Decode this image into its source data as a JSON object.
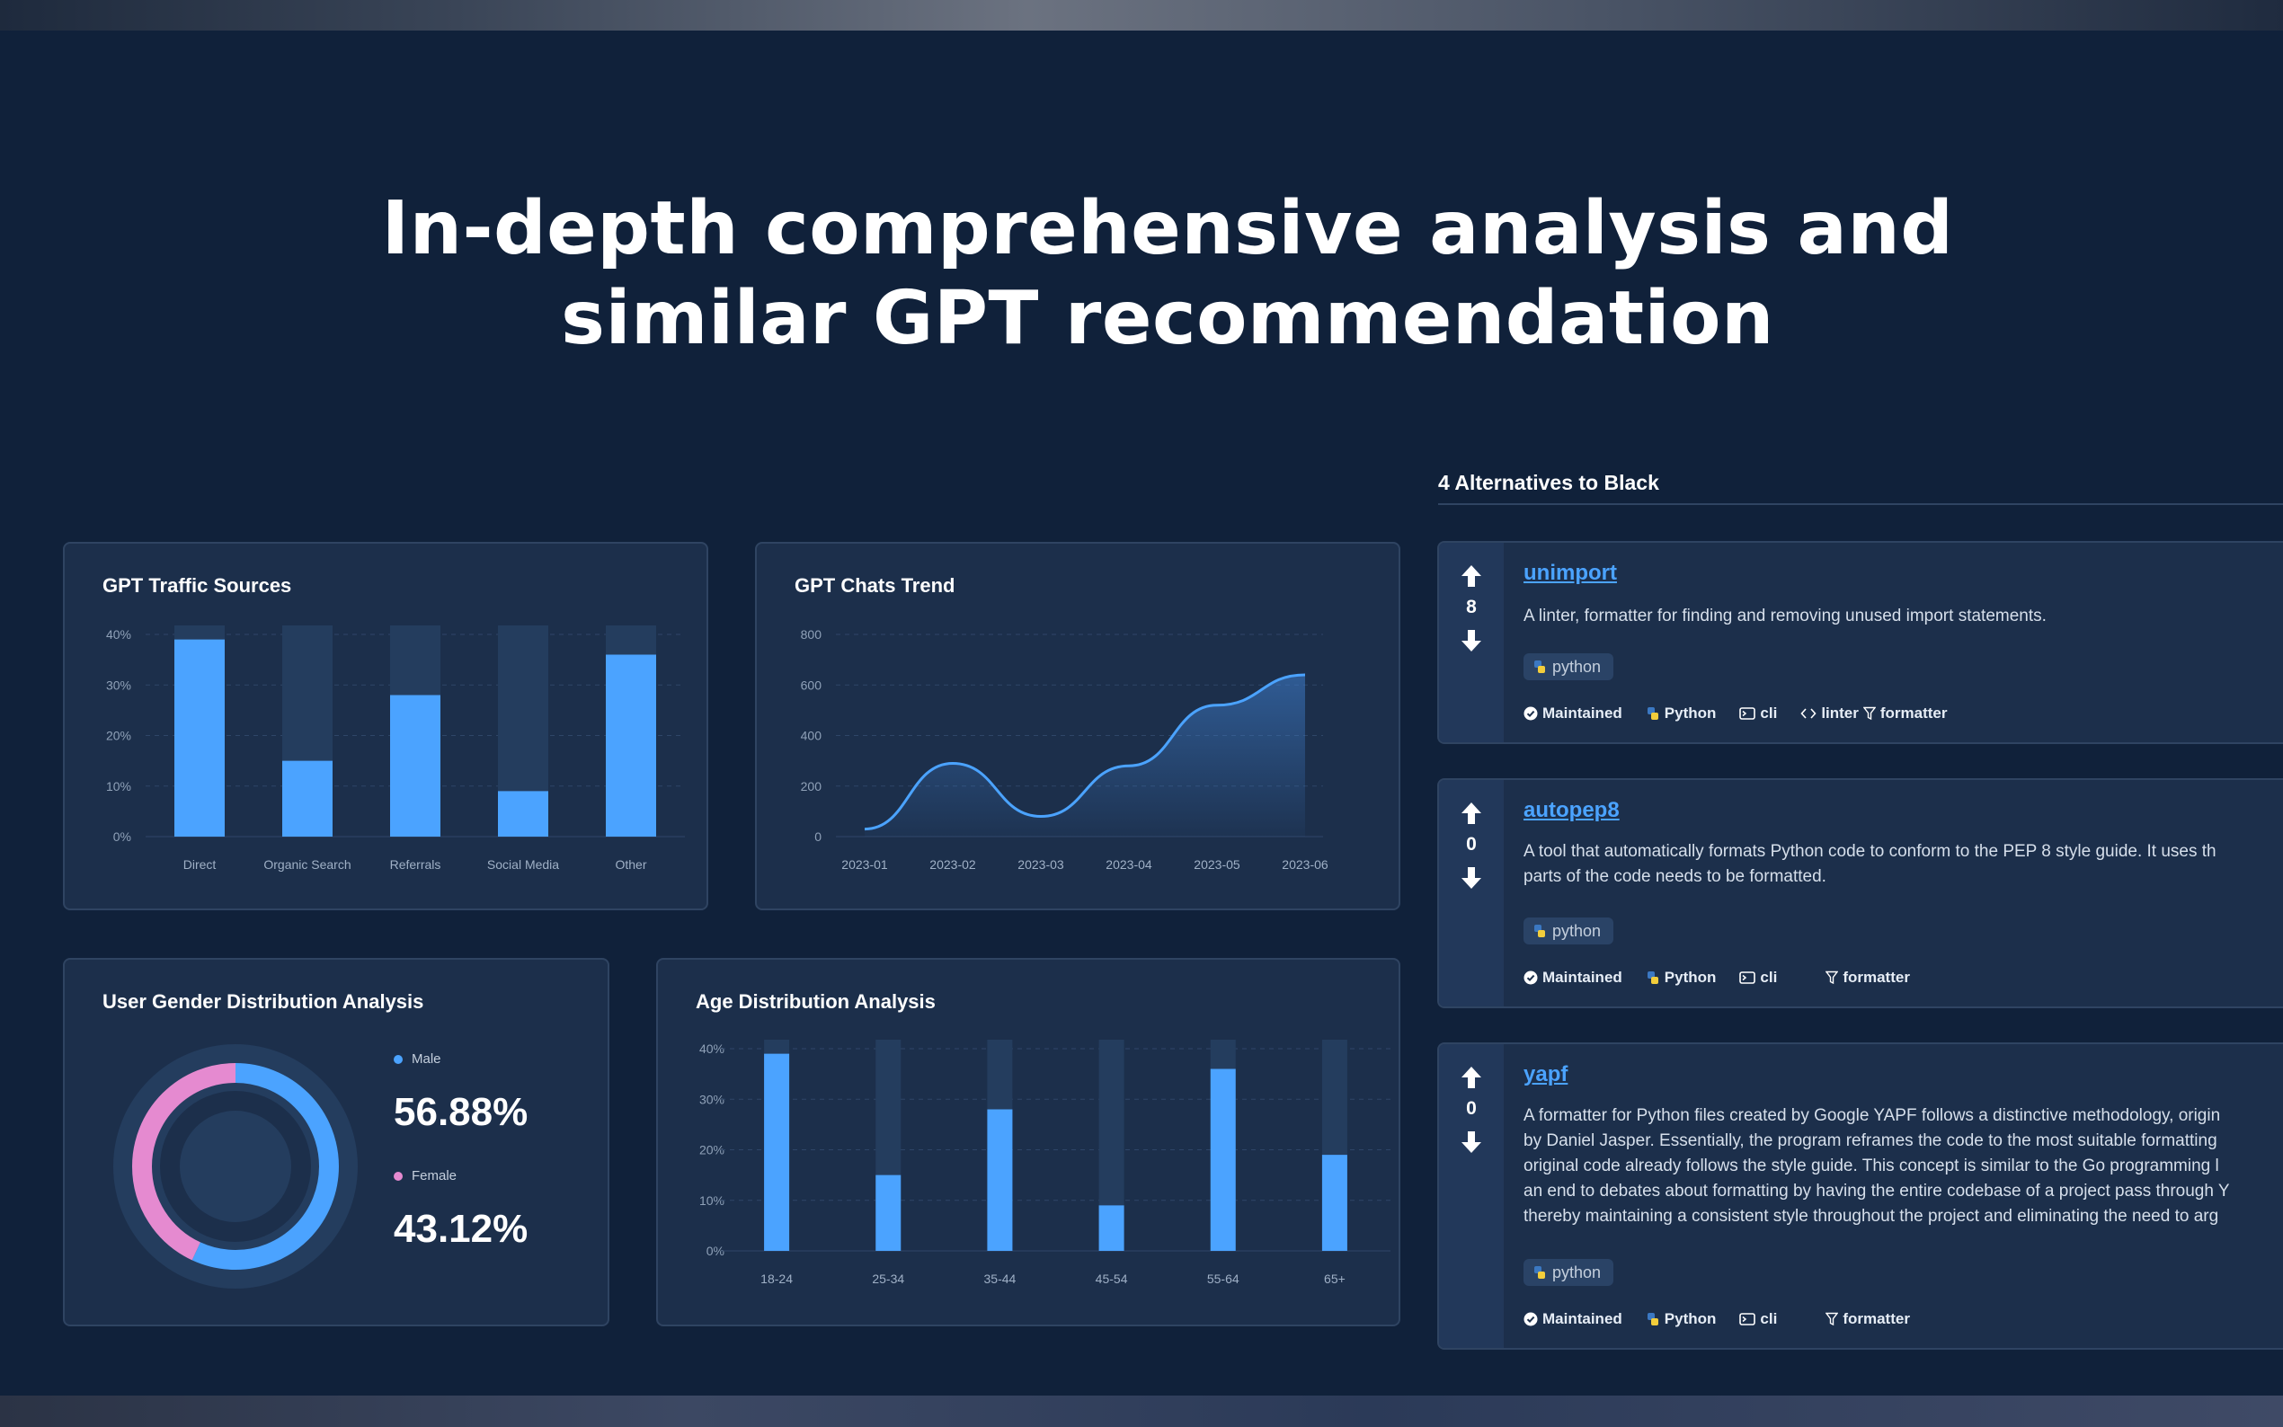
{
  "hero": {
    "line1": "In-depth comprehensive analysis and",
    "line2": "similar GPT recommendation"
  },
  "colors": {
    "background": "#10213a",
    "card": "#1c2f4b",
    "accent_blue": "#4ba3ff",
    "bar_track": "#243d5e",
    "pink": "#e58ad0"
  },
  "traffic": {
    "title": "GPT Traffic Sources",
    "chart_data": {
      "type": "bar",
      "categories": [
        "Direct",
        "Organic Search",
        "Referrals",
        "Social Media",
        "Other"
      ],
      "values": [
        39,
        15,
        28,
        9,
        36
      ],
      "yticks": [
        "40%",
        "30%",
        "20%",
        "10%",
        "0%"
      ],
      "ylim": [
        0,
        40
      ]
    }
  },
  "chats": {
    "title": "GPT Chats Trend",
    "chart_data": {
      "type": "area",
      "x": [
        "2023-01",
        "2023-02",
        "2023-03",
        "2023-04",
        "2023-05",
        "2023-06"
      ],
      "values": [
        30,
        290,
        80,
        280,
        520,
        640
      ],
      "yticks": [
        "800",
        "600",
        "400",
        "200",
        "0"
      ],
      "ylim": [
        0,
        800
      ]
    }
  },
  "gender": {
    "title": "User Gender Distribution Analysis",
    "male_label": "Male",
    "male_value": "56.88%",
    "female_label": "Female",
    "female_value": "43.12%",
    "chart_data": {
      "type": "pie",
      "labels": [
        "Male",
        "Female"
      ],
      "values": [
        56.88,
        43.12
      ]
    }
  },
  "age": {
    "title": "Age Distribution Analysis",
    "chart_data": {
      "type": "bar",
      "categories": [
        "18-24",
        "25-34",
        "35-44",
        "45-54",
        "55-64",
        "65+"
      ],
      "values": [
        39,
        15,
        28,
        9,
        36,
        19
      ],
      "yticks": [
        "40%",
        "30%",
        "20%",
        "10%",
        "0%"
      ],
      "ylim": [
        0,
        40
      ]
    }
  },
  "alternatives": {
    "heading": "4 Alternatives to Black",
    "items": [
      {
        "name": "unimport",
        "votes": "8",
        "desc1": "A linter, formatter for finding and removing unused import statements.",
        "desc2": "",
        "desc3": "",
        "desc4": "",
        "desc5": "",
        "tag": "python",
        "maintained": "Maintained",
        "language": "Python",
        "cli": "cli",
        "tags_text": "linter",
        "formatter": "formatter"
      },
      {
        "name": "autopep8",
        "votes": "0",
        "desc1": "A tool that automatically formats Python code to conform to the PEP 8 style guide. It uses th",
        "desc2": "parts of the code needs to be formatted.",
        "desc3": "",
        "desc4": "",
        "desc5": "",
        "tag": "python",
        "maintained": "Maintained",
        "language": "Python",
        "cli": "cli",
        "tags_text": "",
        "formatter": "formatter"
      },
      {
        "name": "yapf",
        "votes": "0",
        "desc1": "A formatter for Python files created by Google YAPF follows a distinctive methodology, origin",
        "desc2": "by Daniel Jasper. Essentially, the program reframes the code to the most suitable formatting",
        "desc3": "original code already follows the style guide. This concept is similar to the Go programming l",
        "desc4": "an end to debates about formatting by having the entire codebase of a project pass through Y",
        "desc5": "thereby maintaining a consistent style throughout the project and eliminating the need to arg",
        "tag": "python",
        "maintained": "Maintained",
        "language": "Python",
        "cli": "cli",
        "tags_text": "",
        "formatter": "formatter"
      }
    ]
  }
}
